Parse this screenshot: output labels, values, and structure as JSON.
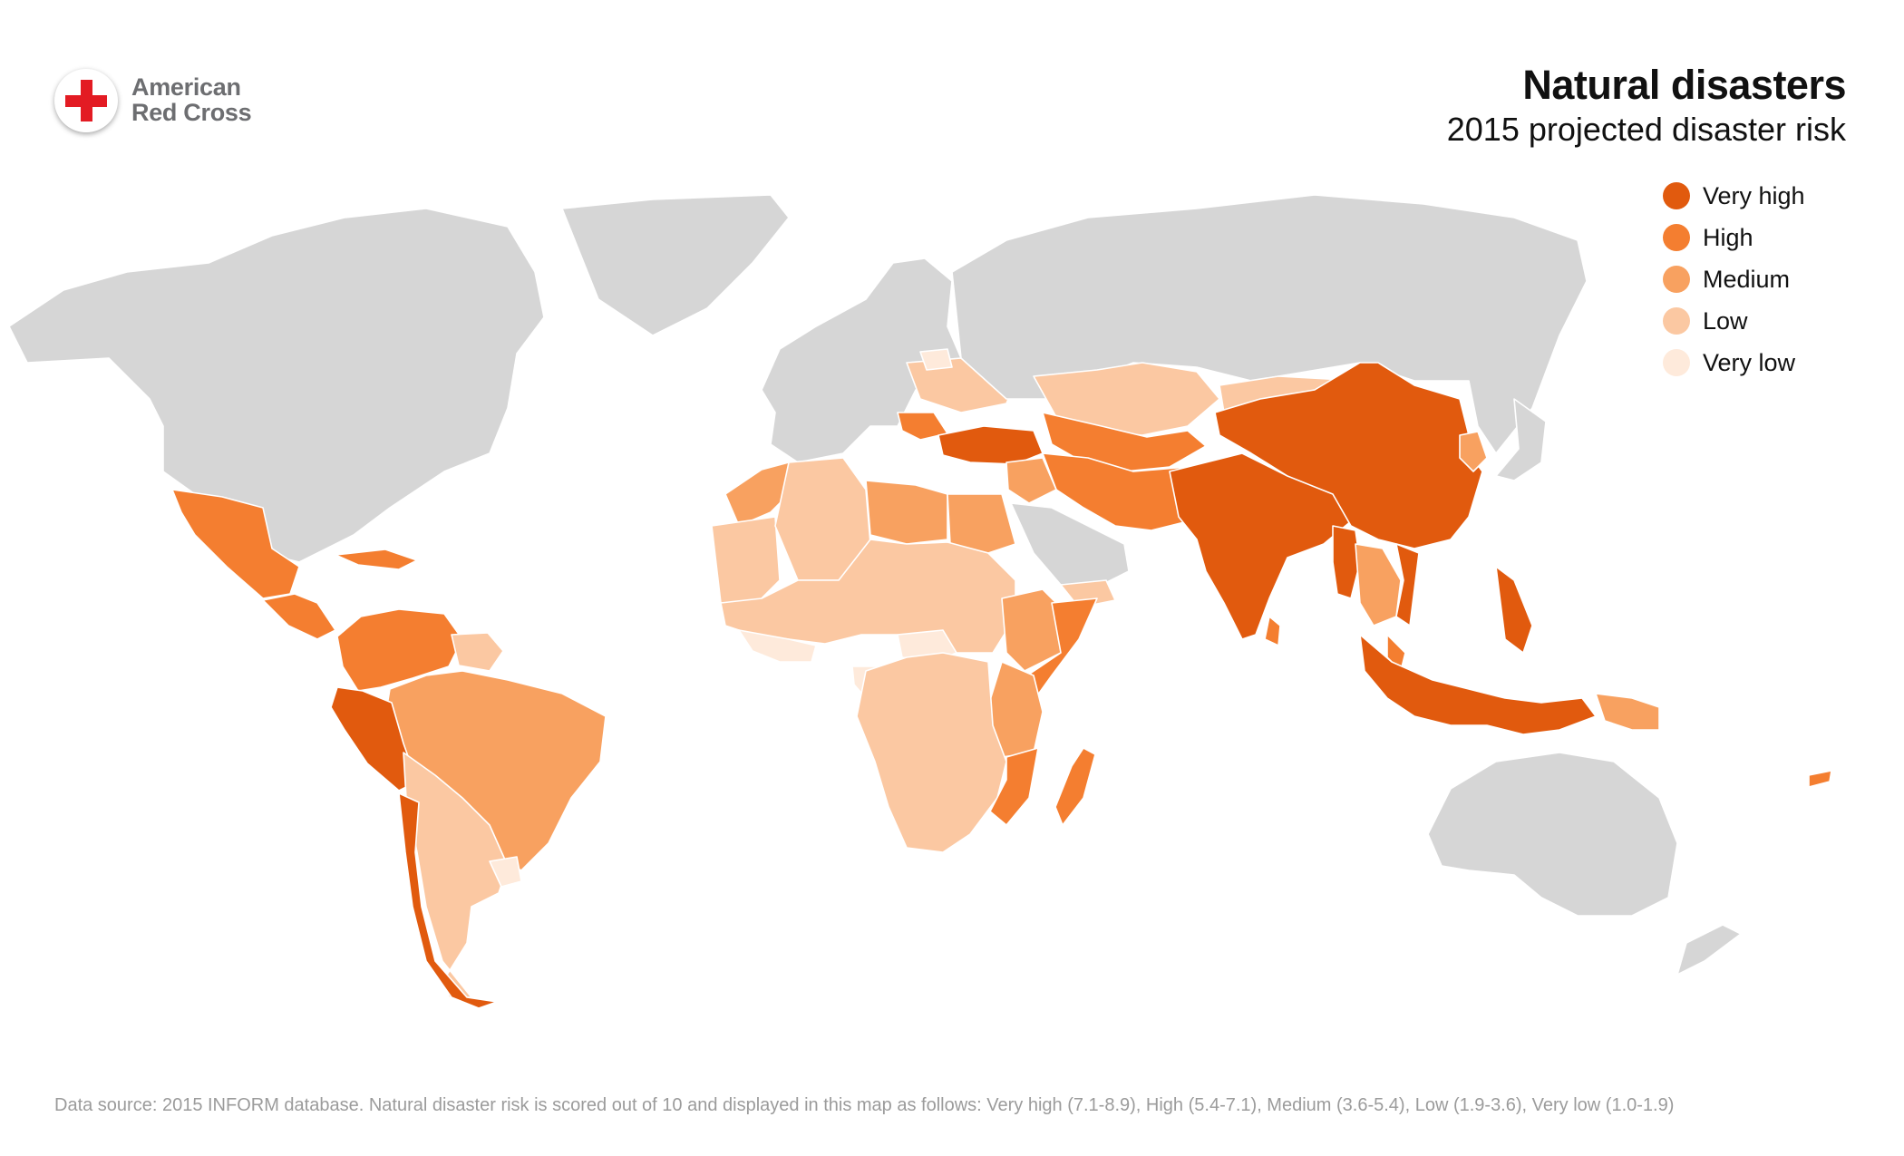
{
  "brand": {
    "line1": "American",
    "line2": "Red Cross",
    "cross_color": "#e31b23"
  },
  "title": "Natural disasters",
  "subtitle": "2015 projected disaster risk",
  "legend": [
    {
      "key": "very_high",
      "label": "Very high",
      "color": "#e15a0e"
    },
    {
      "key": "high",
      "label": "High",
      "color": "#f47e30"
    },
    {
      "key": "medium",
      "label": "Medium",
      "color": "#f8a160"
    },
    {
      "key": "low",
      "label": "Low",
      "color": "#fbc8a2"
    },
    {
      "key": "very_low",
      "label": "Very low",
      "color": "#feeadb"
    }
  ],
  "no_data_color": "#d6d6d6",
  "footnote": "Data source: 2015 INFORM database. Natural disaster risk is scored out of 10 and displayed in this map as follows: Very high (7.1-8.9), High (5.4-7.1), Medium (3.6-5.4), Low (1.9-3.6), Very low (1.0-1.9)",
  "map_data": {
    "regions": [
      {
        "name": "North America",
        "risk": "none"
      },
      {
        "name": "Greenland",
        "risk": "none"
      },
      {
        "name": "Mexico",
        "risk": "high"
      },
      {
        "name": "Central America",
        "risk": "high"
      },
      {
        "name": "Caribbean",
        "risk": "high"
      },
      {
        "name": "Colombia and Venezuela",
        "risk": "high"
      },
      {
        "name": "Guianas",
        "risk": "low"
      },
      {
        "name": "Brazil",
        "risk": "medium"
      },
      {
        "name": "Peru",
        "risk": "very_high"
      },
      {
        "name": "Bolivia, Paraguay and Argentina",
        "risk": "low"
      },
      {
        "name": "Uruguay",
        "risk": "very_low"
      },
      {
        "name": "Chile",
        "risk": "very_high"
      },
      {
        "name": "Europe",
        "risk": "none"
      },
      {
        "name": "Ukraine",
        "risk": "low"
      },
      {
        "name": "Moldova",
        "risk": "very_low"
      },
      {
        "name": "Balkans",
        "risk": "high"
      },
      {
        "name": "Turkey",
        "risk": "very_high"
      },
      {
        "name": "Russia",
        "risk": "none"
      },
      {
        "name": "Kazakhstan",
        "risk": "low"
      },
      {
        "name": "Mongolia",
        "risk": "low"
      },
      {
        "name": "Caucasus and Central Asia",
        "risk": "high"
      },
      {
        "name": "Iran and Afghanistan",
        "risk": "high"
      },
      {
        "name": "Levant and Iraq",
        "risk": "medium"
      },
      {
        "name": "Arabian Peninsula",
        "risk": "none"
      },
      {
        "name": "Yemen",
        "risk": "low"
      },
      {
        "name": "Morocco",
        "risk": "medium"
      },
      {
        "name": "Western Sahara and Mauritania",
        "risk": "low"
      },
      {
        "name": "Algeria",
        "risk": "low"
      },
      {
        "name": "Libya",
        "risk": "medium"
      },
      {
        "name": "Egypt",
        "risk": "medium"
      },
      {
        "name": "Sahel and West Africa",
        "risk": "low"
      },
      {
        "name": "Coastal West Africa",
        "risk": "very_low"
      },
      {
        "name": "Central African Republic",
        "risk": "very_low"
      },
      {
        "name": "Gabon and Congo",
        "risk": "very_low"
      },
      {
        "name": "Ethiopia",
        "risk": "medium"
      },
      {
        "name": "Somalia",
        "risk": "high"
      },
      {
        "name": "Kenya and Tanzania",
        "risk": "medium"
      },
      {
        "name": "Central and Southern Africa",
        "risk": "low"
      },
      {
        "name": "Mozambique",
        "risk": "high"
      },
      {
        "name": "Madagascar",
        "risk": "high"
      },
      {
        "name": "India and South Asia",
        "risk": "very_high"
      },
      {
        "name": "Sri Lanka",
        "risk": "high"
      },
      {
        "name": "China",
        "risk": "very_high"
      },
      {
        "name": "Korean Peninsula",
        "risk": "medium"
      },
      {
        "name": "Japan",
        "risk": "none"
      },
      {
        "name": "Myanmar",
        "risk": "very_high"
      },
      {
        "name": "Thailand, Laos and Cambodia",
        "risk": "medium"
      },
      {
        "name": "Vietnam",
        "risk": "very_high"
      },
      {
        "name": "Philippines",
        "risk": "very_high"
      },
      {
        "name": "Malaysia",
        "risk": "high"
      },
      {
        "name": "Indonesia",
        "risk": "very_high"
      },
      {
        "name": "Papua New Guinea",
        "risk": "medium"
      },
      {
        "name": "Pacific Islands",
        "risk": "high"
      },
      {
        "name": "Australia",
        "risk": "none"
      },
      {
        "name": "New Zealand",
        "risk": "none"
      }
    ]
  }
}
